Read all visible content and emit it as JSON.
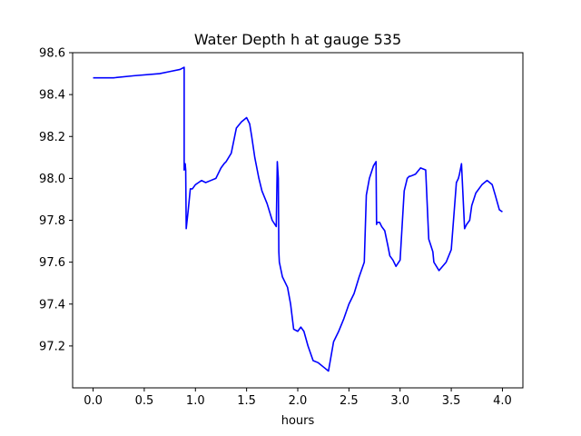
{
  "chart_data": {
    "type": "line",
    "title": "Water Depth h at gauge 535",
    "xlabel": "hours",
    "ylabel": "",
    "xlim": [
      -0.2,
      4.2
    ],
    "ylim": [
      97.0,
      98.6
    ],
    "xticks": [
      0.0,
      0.5,
      1.0,
      1.5,
      2.0,
      2.5,
      3.0,
      3.5,
      4.0
    ],
    "xtick_labels": [
      "0.0",
      "0.5",
      "1.0",
      "1.5",
      "2.0",
      "2.5",
      "3.0",
      "3.5",
      "4.0"
    ],
    "yticks": [
      97.2,
      97.4,
      97.6,
      97.8,
      98.0,
      98.2,
      98.4,
      98.6
    ],
    "ytick_labels": [
      "97.2",
      "97.4",
      "97.6",
      "97.8",
      "98.0",
      "98.2",
      "98.4",
      "98.6"
    ],
    "grid": false,
    "series": [
      {
        "color": "#0000ff",
        "x": [
          0.0,
          0.2,
          0.4,
          0.65,
          0.75,
          0.85,
          0.89,
          0.89,
          0.9,
          0.905,
          0.91,
          0.93,
          0.95,
          0.97,
          1.0,
          1.03,
          1.06,
          1.1,
          1.15,
          1.2,
          1.25,
          1.28,
          1.3,
          1.35,
          1.4,
          1.45,
          1.5,
          1.53,
          1.55,
          1.58,
          1.62,
          1.65,
          1.7,
          1.75,
          1.79,
          1.8,
          1.81,
          1.815,
          1.82,
          1.85,
          1.9,
          1.93,
          1.96,
          2.0,
          2.03,
          2.06,
          2.1,
          2.15,
          2.2,
          2.25,
          2.3,
          2.35,
          2.4,
          2.45,
          2.5,
          2.55,
          2.6,
          2.65,
          2.67,
          2.67,
          2.7,
          2.74,
          2.765,
          2.77,
          2.775,
          2.8,
          2.82,
          2.85,
          2.88,
          2.9,
          2.93,
          2.96,
          3.0,
          3.04,
          3.07,
          3.09,
          3.1,
          3.15,
          3.2,
          3.25,
          3.28,
          3.3,
          3.32,
          3.33,
          3.38,
          3.45,
          3.5,
          3.55,
          3.57,
          3.58,
          3.6,
          3.63,
          3.64,
          3.65,
          3.68,
          3.7,
          3.74,
          3.8,
          3.85,
          3.9,
          3.93,
          3.97,
          4.0
        ],
        "y": [
          98.48,
          98.48,
          98.49,
          98.5,
          98.51,
          98.52,
          98.53,
          98.04,
          98.07,
          98.04,
          97.76,
          97.85,
          97.95,
          97.95,
          97.97,
          97.98,
          97.99,
          97.98,
          97.99,
          98.0,
          98.05,
          98.07,
          98.08,
          98.12,
          98.24,
          98.27,
          98.29,
          98.26,
          98.2,
          98.1,
          98.0,
          97.94,
          97.88,
          97.8,
          97.77,
          98.08,
          98.0,
          97.65,
          97.6,
          97.53,
          97.48,
          97.4,
          97.28,
          97.27,
          97.29,
          97.27,
          97.2,
          97.13,
          97.12,
          97.1,
          97.08,
          97.22,
          97.27,
          97.33,
          97.4,
          97.45,
          97.53,
          97.6,
          97.92,
          97.92,
          98.0,
          98.06,
          98.08,
          97.78,
          97.79,
          97.79,
          97.77,
          97.75,
          97.68,
          97.63,
          97.61,
          97.58,
          97.61,
          97.94,
          98.0,
          98.01,
          98.01,
          98.02,
          98.05,
          98.04,
          97.71,
          97.68,
          97.65,
          97.6,
          97.56,
          97.6,
          97.66,
          97.98,
          98.0,
          98.02,
          98.07,
          97.76,
          97.77,
          97.78,
          97.8,
          97.87,
          97.93,
          97.97,
          97.99,
          97.97,
          97.92,
          97.85,
          97.84
        ]
      }
    ]
  }
}
